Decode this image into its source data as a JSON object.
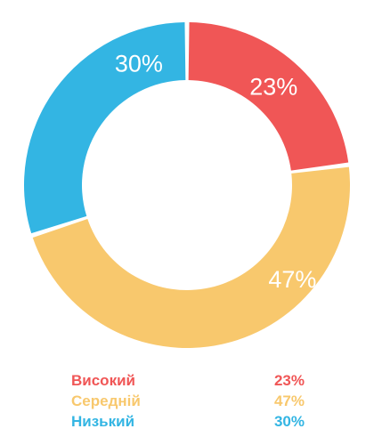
{
  "chart_data": {
    "type": "pie",
    "style": "donut",
    "categories": [
      "Високий",
      "Середній",
      "Низький"
    ],
    "values": [
      23,
      47,
      30
    ],
    "labels": [
      "23%",
      "47%",
      "30%"
    ],
    "colors": [
      "#f05656",
      "#f8c86d",
      "#33b5e3"
    ],
    "start_angle_deg": 0,
    "direction": "clockwise",
    "legend_position": "bottom"
  }
}
